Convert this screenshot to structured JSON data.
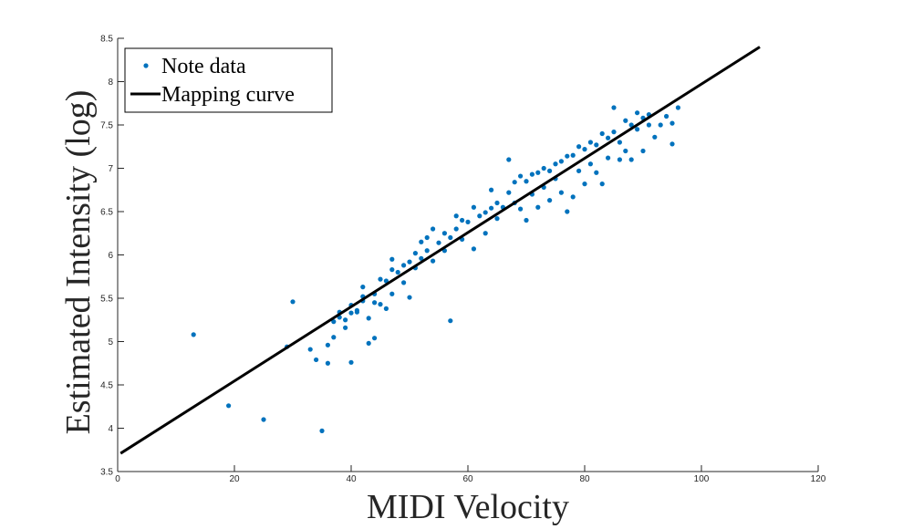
{
  "chart_data": {
    "type": "scatter",
    "xlabel": "MIDI Velocity",
    "ylabel": "Estimated Intensity (log)",
    "xlim": [
      0,
      120
    ],
    "ylim": [
      3.5,
      8.5
    ],
    "xticks": [
      0,
      20,
      40,
      60,
      80,
      100,
      120
    ],
    "yticks": [
      3.5,
      4,
      4.5,
      5,
      5.5,
      6,
      6.5,
      7,
      7.5,
      8,
      8.5
    ],
    "grid": false,
    "legend_position": "top-left",
    "colors": {
      "points": "#0072BD",
      "line": "#000000"
    },
    "series": [
      {
        "name": "Note data",
        "kind": "scatter",
        "points": [
          [
            13,
            5.08
          ],
          [
            19,
            4.26
          ],
          [
            25,
            4.1
          ],
          [
            29,
            4.94
          ],
          [
            30,
            5.46
          ],
          [
            33,
            4.91
          ],
          [
            34,
            4.79
          ],
          [
            35,
            3.97
          ],
          [
            36,
            4.75
          ],
          [
            36,
            4.96
          ],
          [
            37,
            5.05
          ],
          [
            37,
            5.23
          ],
          [
            38,
            5.28
          ],
          [
            38,
            5.34
          ],
          [
            39,
            5.25
          ],
          [
            39,
            5.16
          ],
          [
            40,
            4.76
          ],
          [
            40,
            5.33
          ],
          [
            40,
            5.42
          ],
          [
            41,
            5.36
          ],
          [
            41,
            5.34
          ],
          [
            42,
            5.47
          ],
          [
            42,
            5.52
          ],
          [
            42,
            5.63
          ],
          [
            43,
            4.98
          ],
          [
            43,
            5.27
          ],
          [
            44,
            5.04
          ],
          [
            44,
            5.45
          ],
          [
            44,
            5.55
          ],
          [
            45,
            5.72
          ],
          [
            45,
            5.43
          ],
          [
            46,
            5.7
          ],
          [
            46,
            5.38
          ],
          [
            47,
            5.83
          ],
          [
            47,
            5.55
          ],
          [
            47,
            5.95
          ],
          [
            48,
            5.8
          ],
          [
            49,
            5.88
          ],
          [
            49,
            5.68
          ],
          [
            50,
            5.92
          ],
          [
            50,
            5.51
          ],
          [
            51,
            6.02
          ],
          [
            51,
            5.85
          ],
          [
            52,
            6.15
          ],
          [
            52,
            5.96
          ],
          [
            53,
            6.2
          ],
          [
            53,
            6.05
          ],
          [
            54,
            5.93
          ],
          [
            54,
            6.3
          ],
          [
            55,
            6.14
          ],
          [
            56,
            6.25
          ],
          [
            56,
            6.05
          ],
          [
            57,
            5.24
          ],
          [
            57,
            6.2
          ],
          [
            58,
            6.45
          ],
          [
            58,
            6.3
          ],
          [
            59,
            6.4
          ],
          [
            59,
            6.18
          ],
          [
            60,
            6.38
          ],
          [
            61,
            6.55
          ],
          [
            61,
            6.07
          ],
          [
            62,
            6.45
          ],
          [
            63,
            6.49
          ],
          [
            63,
            6.25
          ],
          [
            64,
            6.54
          ],
          [
            64,
            6.75
          ],
          [
            65,
            6.6
          ],
          [
            65,
            6.42
          ],
          [
            66,
            6.55
          ],
          [
            67,
            7.1
          ],
          [
            67,
            6.72
          ],
          [
            68,
            6.84
          ],
          [
            68,
            6.6
          ],
          [
            69,
            6.91
          ],
          [
            69,
            6.53
          ],
          [
            70,
            6.85
          ],
          [
            70,
            6.4
          ],
          [
            71,
            6.93
          ],
          [
            71,
            6.7
          ],
          [
            72,
            6.95
          ],
          [
            72,
            6.55
          ],
          [
            73,
            7.0
          ],
          [
            73,
            6.78
          ],
          [
            74,
            6.97
          ],
          [
            74,
            6.63
          ],
          [
            75,
            7.05
          ],
          [
            75,
            6.88
          ],
          [
            76,
            7.08
          ],
          [
            76,
            6.72
          ],
          [
            77,
            7.14
          ],
          [
            77,
            6.5
          ],
          [
            78,
            7.15
          ],
          [
            78,
            6.67
          ],
          [
            79,
            7.25
          ],
          [
            79,
            6.97
          ],
          [
            80,
            7.22
          ],
          [
            80,
            6.82
          ],
          [
            81,
            7.3
          ],
          [
            81,
            7.05
          ],
          [
            82,
            7.27
          ],
          [
            82,
            6.95
          ],
          [
            83,
            7.4
          ],
          [
            83,
            6.82
          ],
          [
            84,
            7.35
          ],
          [
            84,
            7.12
          ],
          [
            85,
            7.7
          ],
          [
            85,
            7.42
          ],
          [
            86,
            7.3
          ],
          [
            86,
            7.1
          ],
          [
            87,
            7.55
          ],
          [
            87,
            7.2
          ],
          [
            88,
            7.5
          ],
          [
            88,
            7.1
          ],
          [
            89,
            7.64
          ],
          [
            89,
            7.45
          ],
          [
            90,
            7.58
          ],
          [
            90,
            7.2
          ],
          [
            91,
            7.62
          ],
          [
            91,
            7.5
          ],
          [
            92,
            7.36
          ],
          [
            93,
            7.5
          ],
          [
            94,
            7.6
          ],
          [
            95,
            7.28
          ],
          [
            95,
            7.52
          ],
          [
            96,
            7.7
          ]
        ]
      },
      {
        "name": "Mapping curve",
        "kind": "line",
        "points": [
          [
            0.5,
            3.71
          ],
          [
            110,
            8.4
          ]
        ]
      }
    ]
  }
}
